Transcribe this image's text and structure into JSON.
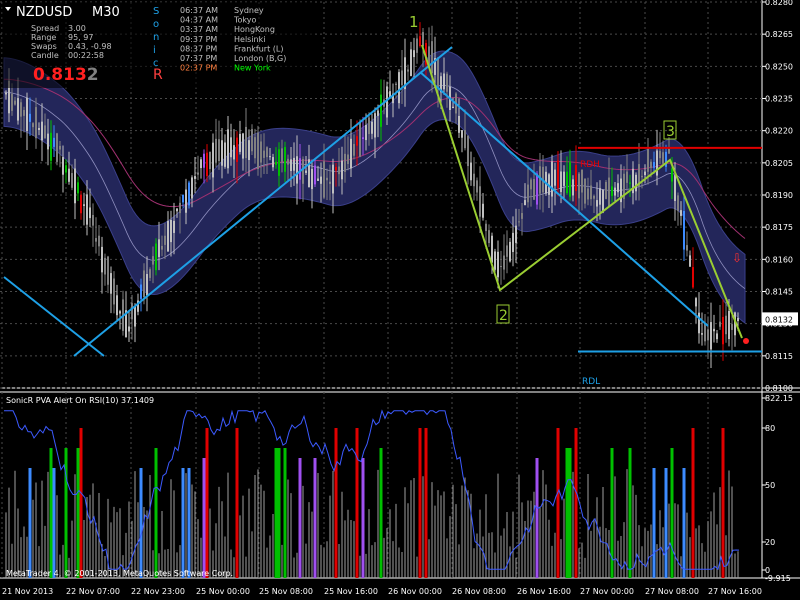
{
  "symbol": {
    "name": "NZDUSD",
    "timeframe": "M30"
  },
  "stats": [
    {
      "label": "Spread",
      "value": "3.00"
    },
    {
      "label": "Range",
      "value": "95, 97"
    },
    {
      "label": "Swaps",
      "value": "0.43, -0.98"
    },
    {
      "label": "Candle",
      "value": "00:22:58"
    }
  ],
  "price": {
    "big": "0.813",
    "small": "2",
    "current": "0.8132"
  },
  "brand_vertical": [
    "S",
    "o",
    "n",
    "i",
    "c",
    "R"
  ],
  "sessions": [
    {
      "time": "06:37 AM",
      "city": "Sydney",
      "color": "#c0c0c0"
    },
    {
      "time": "04:37 AM",
      "city": "Tokyo",
      "color": "#c0c0c0"
    },
    {
      "time": "03:37 AM",
      "city": "HongKong",
      "color": "#c0c0c0"
    },
    {
      "time": "09:37 PM",
      "city": "Helsinki",
      "color": "#c0c0c0"
    },
    {
      "time": "08:37 PM",
      "city": "Frankfurt (L)",
      "color": "#c0c0c0"
    },
    {
      "time": "07:37 PM",
      "city": "London (B,G)",
      "color": "#c0c0c0"
    },
    {
      "time": "02:37 PM",
      "city": "New York",
      "color": "#ff8040",
      "city_color": "#00ff00"
    }
  ],
  "wave_labels": [
    "1",
    "2",
    "3"
  ],
  "level_labels": {
    "rdh": "RDH",
    "rdl": "RDL"
  },
  "indicator": {
    "title": "SonicR PVA   Alert On  RSI(10) 37.1409"
  },
  "copyright": "MetaTrader 4, © 2001-2013, MetaQuotes Software Corp.",
  "colors": {
    "bg": "#000000",
    "grid": "#4a4a4a",
    "bull": "#c0c0c0",
    "bear": "#808080",
    "channel": "#23265a",
    "trend": "#1ea0e6",
    "wave": "#9acd32",
    "rdh": "#e00000",
    "climax_up": "#00c000",
    "climax_down": "#e00000",
    "rising": "#3d8bff",
    "purple": "#a050f0",
    "rsi": "#3c5aff"
  },
  "chart_data": {
    "type": "candlestick",
    "symbol": "NZDUSD",
    "timeframe": "M30",
    "price_axis": [
      "0.8280",
      "0.8265",
      "0.8250",
      "0.8235",
      "0.8220",
      "0.8205",
      "0.8190",
      "0.8175",
      "0.8160",
      "0.8145",
      "0.8130",
      "0.8115",
      "0.8100"
    ],
    "ylim": [
      0.81,
      0.828
    ],
    "time_axis": [
      "21 Nov 2013",
      "22 Nov 07:00",
      "22 Nov 23:00",
      "25 Nov 00:00",
      "25 Nov 08:00",
      "25 Nov 16:00",
      "26 Nov 00:00",
      "26 Nov 08:00",
      "26 Nov 16:00",
      "27 Nov 00:00",
      "27 Nov 08:00",
      "27 Nov 16:00"
    ],
    "waves": [
      {
        "label": "1",
        "price": 0.8262
      },
      {
        "label": "2",
        "price": 0.8153
      },
      {
        "label": "3",
        "price": 0.8211
      }
    ],
    "levels": {
      "RDH": 0.8212,
      "RDL": 0.8117
    },
    "current_price": 0.8132,
    "indicator": {
      "name": "SonicR PVA",
      "rsi_period": 10,
      "rsi_value": 37.1409,
      "axis": [
        "822.15",
        "80",
        "50",
        "20",
        "0",
        "-9.915"
      ]
    }
  }
}
